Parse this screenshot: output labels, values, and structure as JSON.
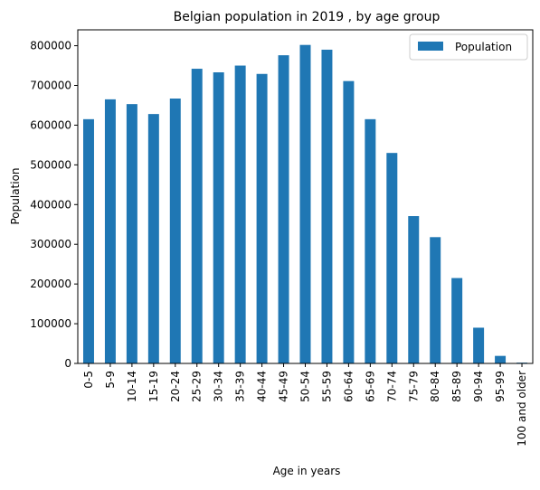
{
  "chart_data": {
    "type": "bar",
    "title": "Belgian population in 2019 , by age group",
    "xlabel": "Age in years",
    "ylabel": "Population",
    "ylim": [
      0,
      840000
    ],
    "yticks": [
      0,
      100000,
      200000,
      300000,
      400000,
      500000,
      600000,
      700000,
      800000
    ],
    "grid": false,
    "legend_position": "top-right",
    "bar_color": "#1f77b4",
    "categories": [
      "0-5",
      "5-9",
      "10-14",
      "15-19",
      "20-24",
      "25-29",
      "30-34",
      "35-39",
      "40-44",
      "45-49",
      "50-54",
      "55-59",
      "60-64",
      "65-69",
      "70-74",
      "75-79",
      "80-84",
      "85-89",
      "90-94",
      "95-99",
      "100 and older"
    ],
    "series": [
      {
        "name": "Population",
        "values": [
          615000,
          665000,
          653000,
          628000,
          667000,
          742000,
          733000,
          750000,
          729000,
          776000,
          802000,
          790000,
          711000,
          615000,
          530000,
          371000,
          318000,
          215000,
          90000,
          19000,
          2000
        ]
      }
    ]
  }
}
